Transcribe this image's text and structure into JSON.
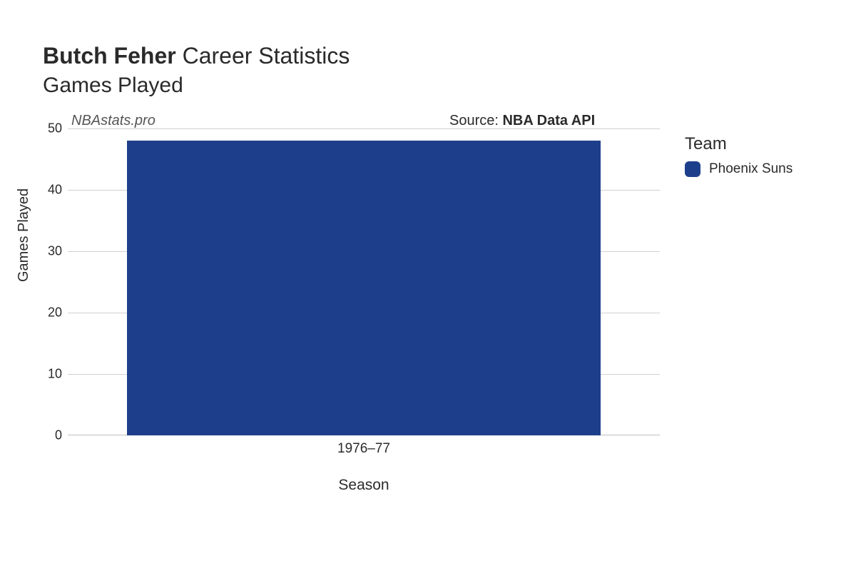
{
  "title": {
    "player_name": "Butch Feher",
    "suffix": " Career Statistics",
    "subtitle": "Games Played",
    "title_fontsize": 32,
    "subtitle_fontsize": 30
  },
  "watermark": {
    "text": "NBAstats.pro",
    "fontsize": 20,
    "color": "#555555"
  },
  "source": {
    "prefix": "Source: ",
    "name": "NBA Data API",
    "fontsize": 20
  },
  "chart": {
    "type": "bar",
    "xlabel": "Season",
    "ylabel": "Games Played",
    "label_fontsize": 20,
    "tick_fontsize": 18,
    "background_color": "#ffffff",
    "grid_color": "#d0d0d0",
    "axis_line_color": "#bfbfbf",
    "ylim": [
      0,
      50
    ],
    "yticks": [
      0,
      10,
      20,
      30,
      40,
      50
    ],
    "categories": [
      "1976–77"
    ],
    "values": [
      48
    ],
    "bar_colors": [
      "#1d3f8b"
    ],
    "bar_width": 0.8
  },
  "legend": {
    "title": "Team",
    "items": [
      {
        "label": "Phoenix Suns",
        "color": "#1d3f8b"
      }
    ],
    "title_fontsize": 24,
    "item_fontsize": 19
  }
}
